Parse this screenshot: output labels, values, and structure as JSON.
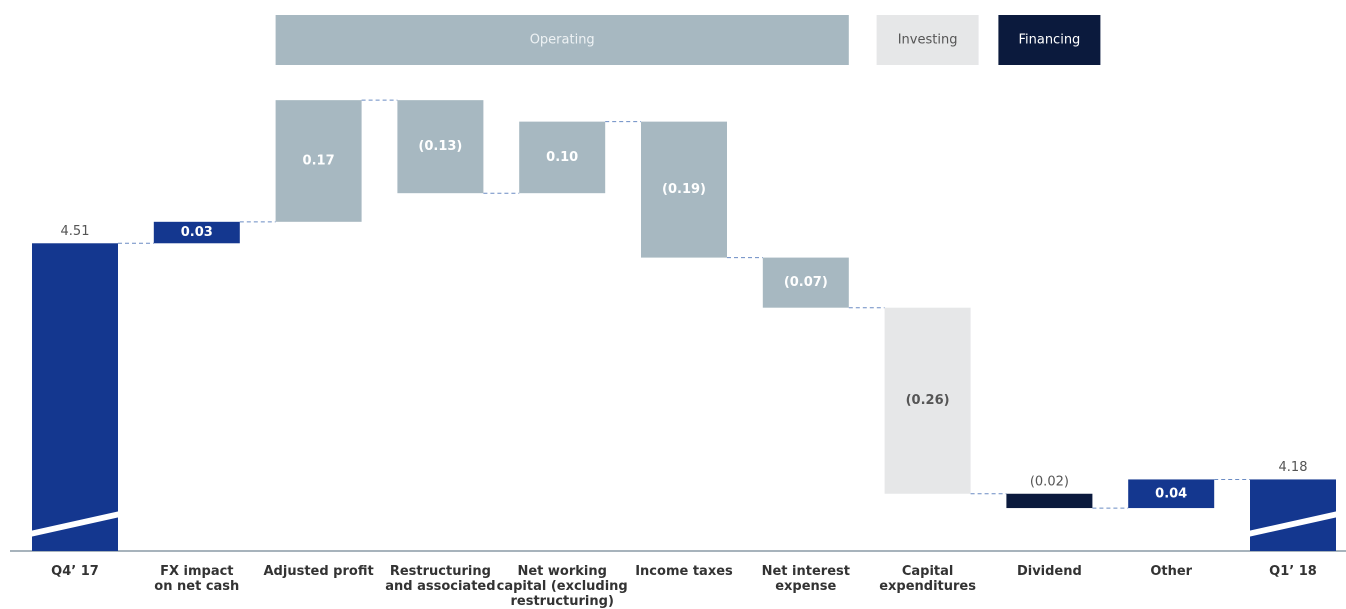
{
  "chart_data": {
    "type": "waterfall",
    "categories": [
      "Q4’ 17",
      "FX impact\non net cash",
      "Adjusted profit",
      "Restructuring\nand associated",
      "Net working\ncapital (excluding\nrestructuring)",
      "Income taxes",
      "Net interest\nexpense",
      "Capital\nexpenditures",
      "Dividend",
      "Other",
      "Q1’ 18"
    ],
    "values": [
      4.51,
      0.03,
      0.17,
      -0.13,
      0.1,
      -0.19,
      -0.07,
      -0.26,
      -0.02,
      0.04,
      4.18
    ],
    "value_labels": [
      "4.51",
      "0.03",
      "0.17",
      "(0.13)",
      "0.10",
      "(0.19)",
      "(0.07)",
      "(0.26)",
      "(0.02)",
      "0.04",
      "4.18"
    ],
    "colors": [
      "#14378f",
      "#14378f",
      "#a7b8c1",
      "#a7b8c1",
      "#a7b8c1",
      "#a7b8c1",
      "#a7b8c1",
      "#e6e7e8",
      "#0b1a3d",
      "#14378f",
      "#14378f"
    ],
    "groups": [
      {
        "name": "Operating",
        "color": "#a7b8c1"
      },
      {
        "name": "Investing",
        "color": "#e6e7e8"
      },
      {
        "name": "Financing",
        "color": "#0b1a3d"
      }
    ],
    "ylim": [
      4.08,
      4.72
    ]
  }
}
